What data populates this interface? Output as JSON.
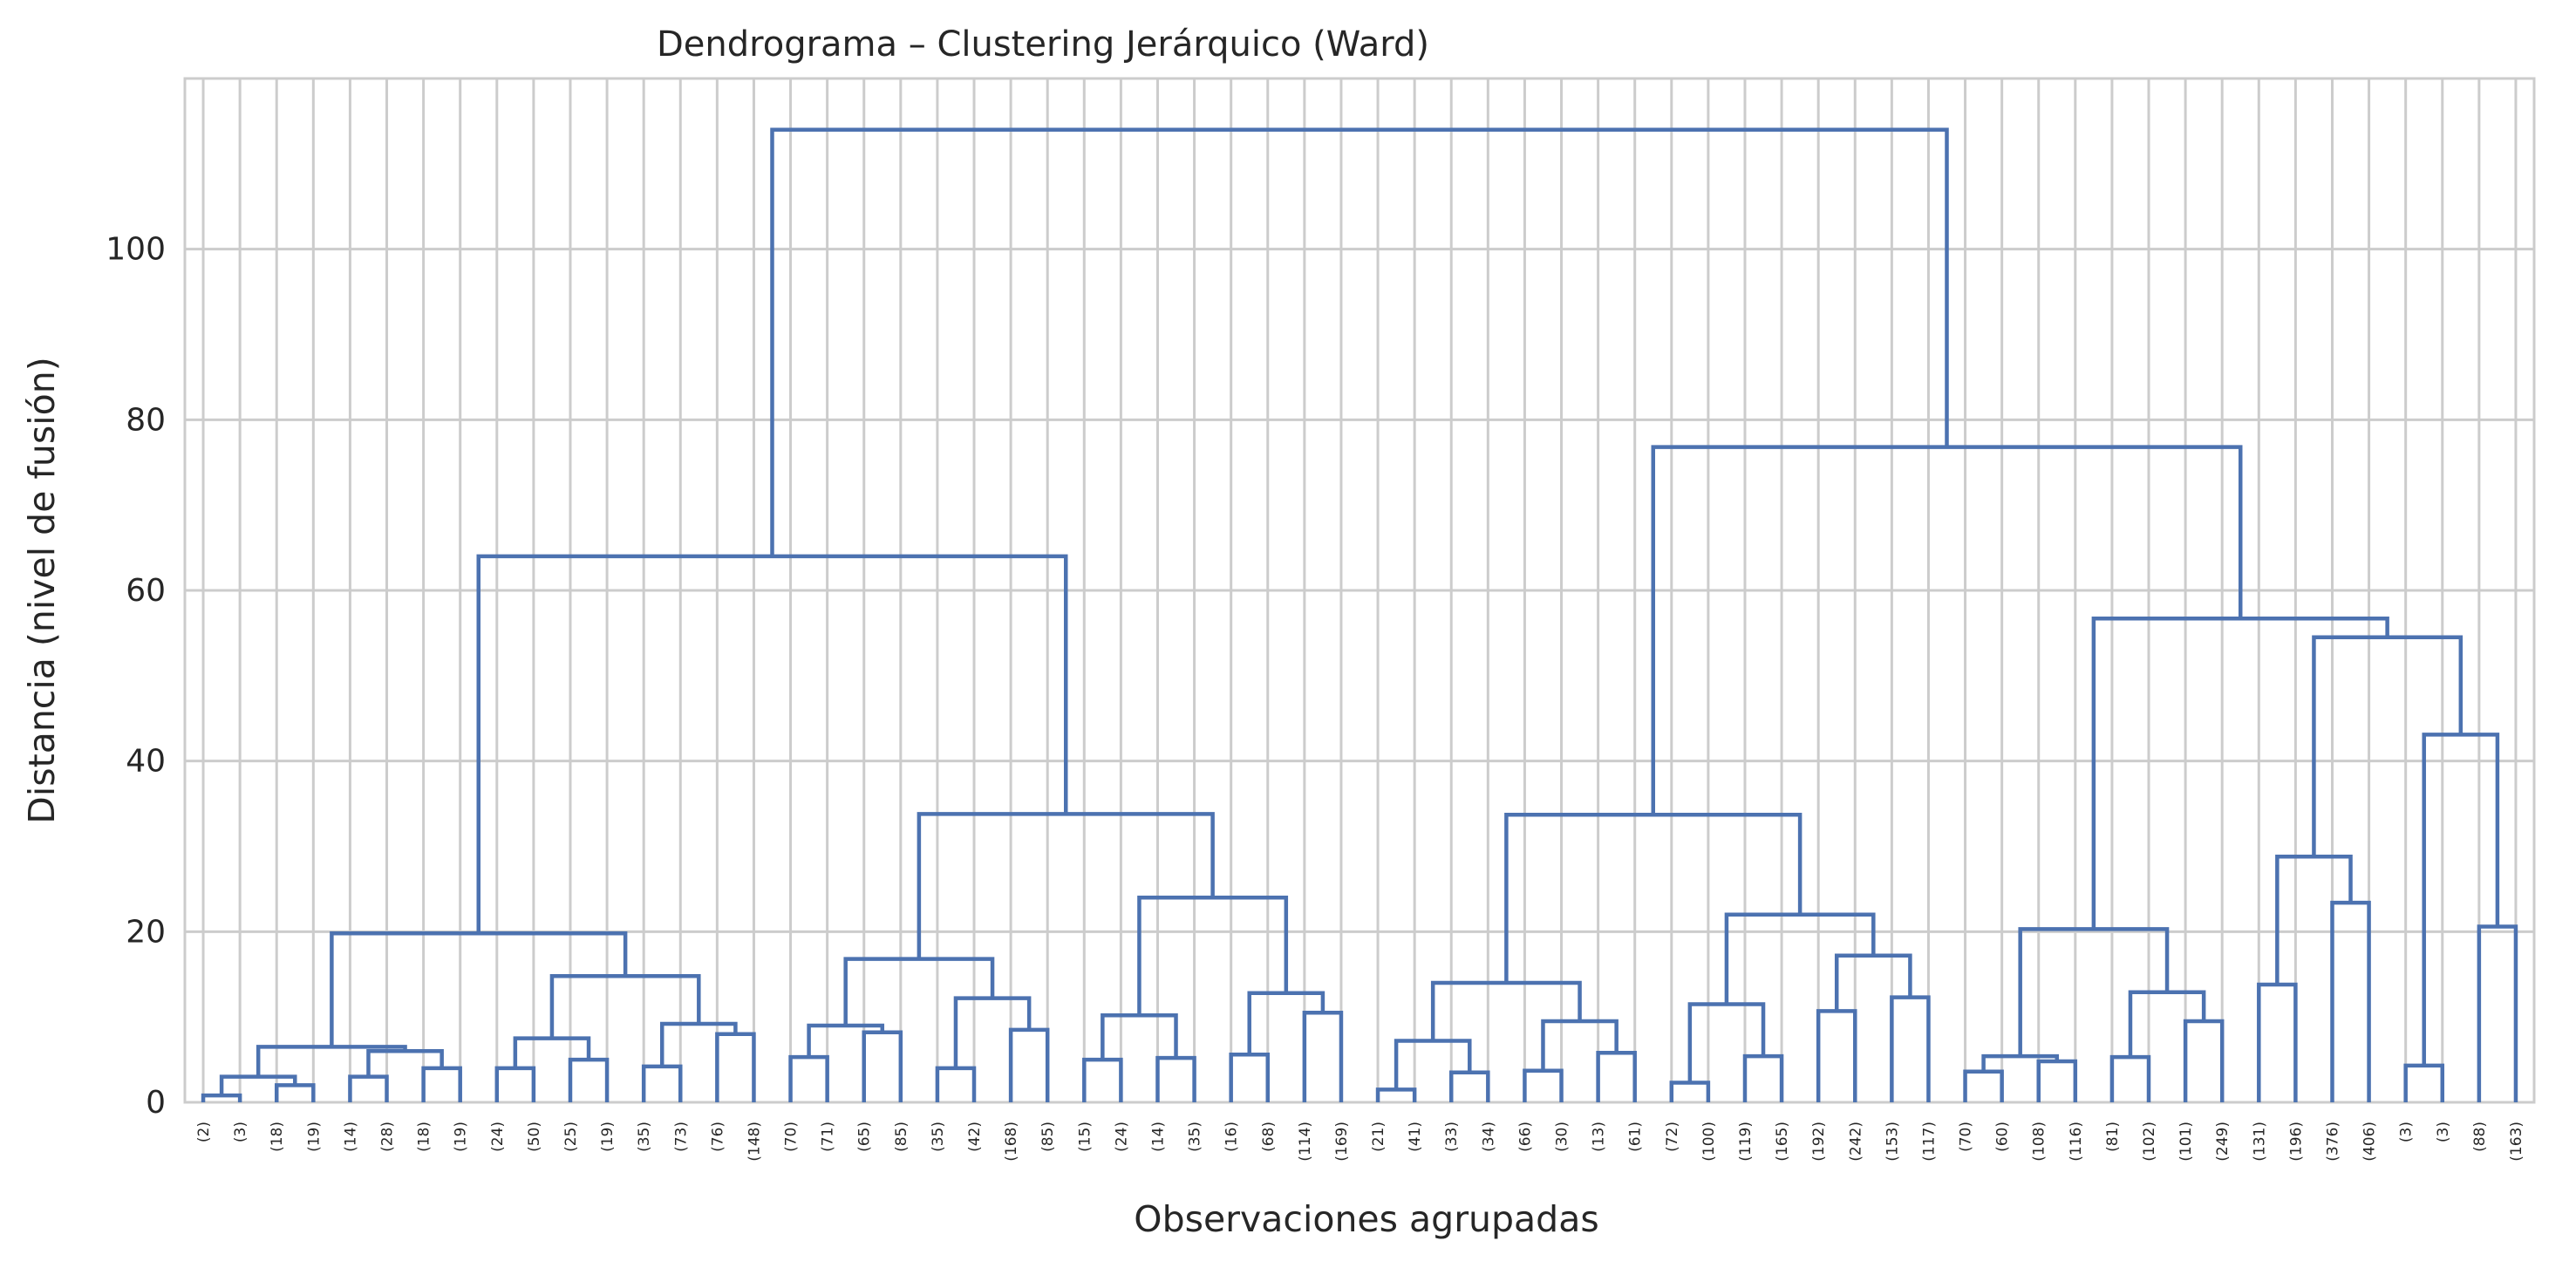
{
  "chart_data": {
    "type": "dendrogram",
    "title": "Dendrograma – Clustering Jerárquico (Ward)",
    "xlabel": "Observaciones agrupadas",
    "ylabel": "Distancia (nivel de fusión)",
    "ylim": [
      0,
      120
    ],
    "yticks": [
      0,
      20,
      40,
      60,
      80,
      100
    ],
    "grid": true,
    "line_color": "#4c72b0",
    "grid_color": "#cccccc",
    "leaf_labels": [
      "(2)",
      "(3)",
      "(18)",
      "(19)",
      "(14)",
      "(28)",
      "(18)",
      "(19)",
      "(24)",
      "(50)",
      "(25)",
      "(19)",
      "(35)",
      "(73)",
      "(76)",
      "(148)",
      "(70)",
      "(71)",
      "(65)",
      "(85)",
      "(35)",
      "(42)",
      "(168)",
      "(85)",
      "(15)",
      "(24)",
      "(14)",
      "(35)",
      "(16)",
      "(68)",
      "(114)",
      "(169)",
      "(21)",
      "(41)",
      "(33)",
      "(34)",
      "(66)",
      "(30)",
      "(13)",
      "(61)",
      "(72)",
      "(100)",
      "(119)",
      "(165)",
      "(192)",
      "(242)",
      "(153)",
      "(117)",
      "(70)",
      "(60)",
      "(108)",
      "(116)",
      "(81)",
      "(102)",
      "(101)",
      "(249)",
      "(131)",
      "(196)",
      "(376)",
      "(406)",
      "(3)",
      "(3)",
      "(88)",
      "(163)"
    ],
    "merges": [
      {
        "left": 0,
        "right": 1,
        "height": 0.8
      },
      {
        "left": 2,
        "right": 3,
        "height": 2.0
      },
      {
        "left": 64,
        "right": 65,
        "height": 3.0
      },
      {
        "left": 4,
        "right": 5,
        "height": 3.0
      },
      {
        "left": 6,
        "right": 7,
        "height": 4.0
      },
      {
        "left": 67,
        "right": 68,
        "height": 6.0
      },
      {
        "left": 66,
        "right": 69,
        "height": 6.5
      },
      {
        "left": 8,
        "right": 9,
        "height": 4.0
      },
      {
        "left": 10,
        "right": 11,
        "height": 5.0
      },
      {
        "left": 71,
        "right": 72,
        "height": 7.5
      },
      {
        "left": 12,
        "right": 13,
        "height": 4.2
      },
      {
        "left": 14,
        "right": 15,
        "height": 8.0
      },
      {
        "left": 74,
        "right": 75,
        "height": 9.2
      },
      {
        "left": 73,
        "right": 76,
        "height": 14.8
      },
      {
        "left": 70,
        "right": 77,
        "height": 19.8
      },
      {
        "left": 16,
        "right": 17,
        "height": 5.3
      },
      {
        "left": 18,
        "right": 19,
        "height": 8.2
      },
      {
        "left": 79,
        "right": 80,
        "height": 9.0
      },
      {
        "left": 20,
        "right": 21,
        "height": 4.0
      },
      {
        "left": 22,
        "right": 23,
        "height": 8.5
      },
      {
        "left": 82,
        "right": 83,
        "height": 12.2
      },
      {
        "left": 81,
        "right": 84,
        "height": 16.8
      },
      {
        "left": 24,
        "right": 25,
        "height": 5.0
      },
      {
        "left": 26,
        "right": 27,
        "height": 5.2
      },
      {
        "left": 86,
        "right": 87,
        "height": 10.2
      },
      {
        "left": 28,
        "right": 29,
        "height": 5.6
      },
      {
        "left": 30,
        "right": 31,
        "height": 10.5
      },
      {
        "left": 89,
        "right": 90,
        "height": 12.8
      },
      {
        "left": 88,
        "right": 91,
        "height": 24.0
      },
      {
        "left": 85,
        "right": 92,
        "height": 33.8
      },
      {
        "left": 78,
        "right": 93,
        "height": 64.0
      },
      {
        "left": 32,
        "right": 33,
        "height": 1.5
      },
      {
        "left": 34,
        "right": 35,
        "height": 3.5
      },
      {
        "left": 95,
        "right": 96,
        "height": 7.2
      },
      {
        "left": 36,
        "right": 37,
        "height": 3.7
      },
      {
        "left": 38,
        "right": 39,
        "height": 5.8
      },
      {
        "left": 98,
        "right": 99,
        "height": 9.5
      },
      {
        "left": 97,
        "right": 100,
        "height": 14.0
      },
      {
        "left": 40,
        "right": 41,
        "height": 2.3
      },
      {
        "left": 42,
        "right": 43,
        "height": 5.4
      },
      {
        "left": 102,
        "right": 103,
        "height": 11.5
      },
      {
        "left": 44,
        "right": 45,
        "height": 10.7
      },
      {
        "left": 46,
        "right": 47,
        "height": 12.3
      },
      {
        "left": 105,
        "right": 106,
        "height": 17.2
      },
      {
        "left": 104,
        "right": 107,
        "height": 22.0
      },
      {
        "left": 101,
        "right": 108,
        "height": 33.7
      },
      {
        "left": 48,
        "right": 49,
        "height": 3.6
      },
      {
        "left": 50,
        "right": 51,
        "height": 4.8
      },
      {
        "left": 110,
        "right": 111,
        "height": 5.4
      },
      {
        "left": 52,
        "right": 53,
        "height": 5.3
      },
      {
        "left": 54,
        "right": 55,
        "height": 9.5
      },
      {
        "left": 113,
        "right": 114,
        "height": 12.9
      },
      {
        "left": 112,
        "right": 115,
        "height": 20.3
      },
      {
        "left": 56,
        "right": 57,
        "height": 13.8
      },
      {
        "left": 58,
        "right": 59,
        "height": 23.4
      },
      {
        "left": 117,
        "right": 118,
        "height": 28.8
      },
      {
        "left": 60,
        "right": 61,
        "height": 4.3
      },
      {
        "left": 62,
        "right": 63,
        "height": 20.6
      },
      {
        "left": 120,
        "right": 121,
        "height": 43.1
      },
      {
        "left": 119,
        "right": 122,
        "height": 54.5
      },
      {
        "left": 116,
        "right": 123,
        "height": 56.7
      },
      {
        "left": 109,
        "right": 124,
        "height": 76.8
      },
      {
        "left": 94,
        "right": 125,
        "height": 114.0
      }
    ]
  }
}
